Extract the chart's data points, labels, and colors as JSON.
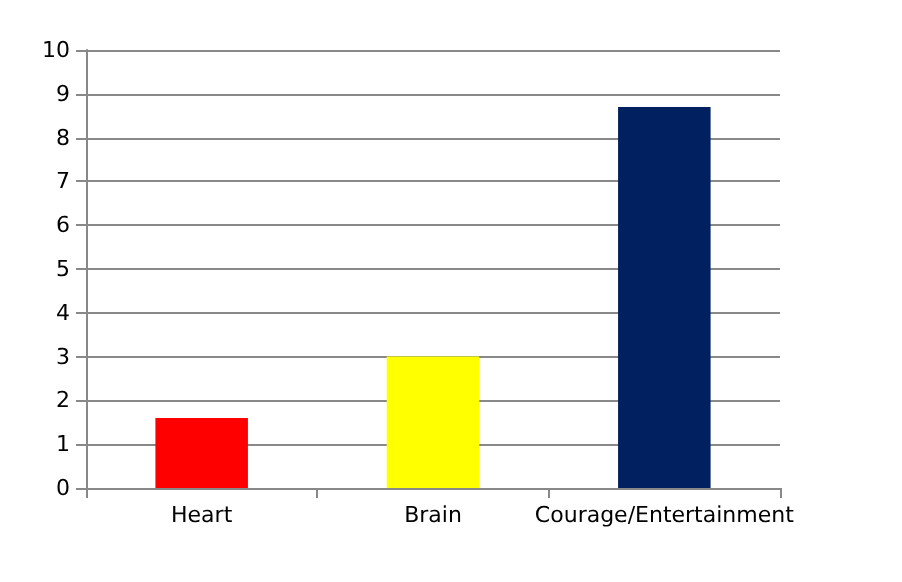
{
  "chart_data": {
    "type": "bar",
    "categories": [
      "Heart",
      "Brain",
      "Courage/Entertainment"
    ],
    "values": [
      1.6,
      3,
      8.7
    ],
    "colors": [
      "#ff0000",
      "#ffff00",
      "#002060"
    ],
    "ylim": [
      0,
      10
    ],
    "yticks": [
      0,
      1,
      2,
      3,
      4,
      5,
      6,
      7,
      8,
      9,
      10
    ],
    "grid": "y"
  }
}
